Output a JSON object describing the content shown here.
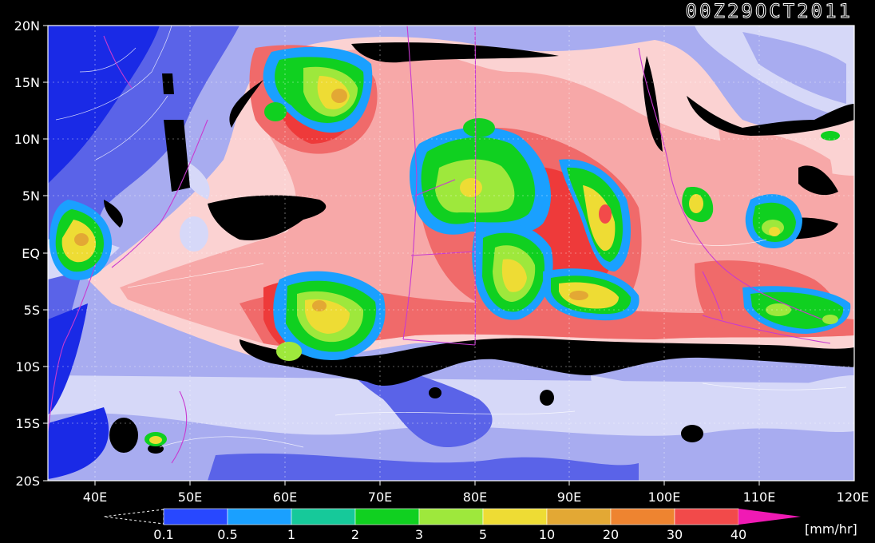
{
  "title": "00Z29OCT2011",
  "unit": "[mm/hr]",
  "lat_labels": [
    "20N",
    "15N",
    "10N",
    "5N",
    "EQ",
    "5S",
    "10S",
    "15S",
    "20S"
  ],
  "lon_labels": [
    "40E",
    "50E",
    "60E",
    "70E",
    "80E",
    "90E",
    "100E",
    "110E",
    "120E"
  ],
  "colorbar": {
    "labels": [
      "0.1",
      "0.5",
      "1",
      "2",
      "3",
      "5",
      "10",
      "20",
      "30",
      "40"
    ],
    "colors": [
      "#2848ff",
      "#1aa0ff",
      "#16c99a",
      "#10d020",
      "#9ee83c",
      "#eedc34",
      "#e3a834",
      "#ee8430",
      "#f24a4a",
      "#f01ab4"
    ]
  },
  "palette": {
    "none": "#000000",
    "trace_deep": "#1a2ae6",
    "trace_mid": "#5a63e8",
    "trace_light": "#a8acf0",
    "trace_pale": "#d6d8f8",
    "low_pale": "#fbd2d2",
    "low_pink": "#f7a8a8",
    "low_red": "#f06a6a",
    "mid_red": "#ee3a3a"
  }
}
